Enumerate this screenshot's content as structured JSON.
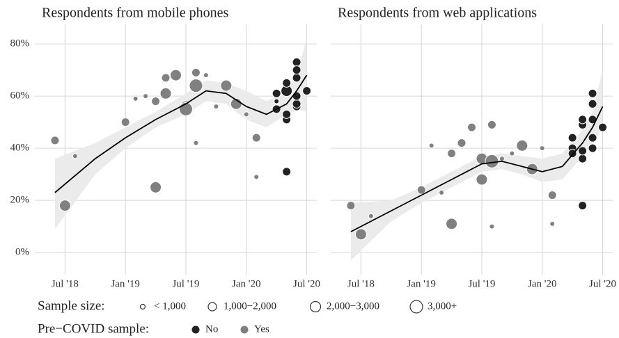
{
  "chart_data": [
    {
      "type": "scatter",
      "title": "Respondents from mobile phones",
      "xlim": [
        "2018-04",
        "2020-08"
      ],
      "xticks": [
        {
          "value": "2018-07",
          "label": "Jul '18"
        },
        {
          "value": "2019-01",
          "label": "Jan '19"
        },
        {
          "value": "2019-07",
          "label": "Jul '19"
        },
        {
          "value": "2020-01",
          "label": "Jan '20"
        },
        {
          "value": "2020-07",
          "label": "Jul '20"
        }
      ],
      "ylim": [
        -8.5,
        87.5
      ],
      "yticks": [
        {
          "value": 0,
          "label": "0%"
        },
        {
          "value": 20,
          "label": "20%"
        },
        {
          "value": 40,
          "label": "40%"
        },
        {
          "value": 60,
          "label": "60%"
        },
        {
          "value": 80,
          "label": "80%"
        }
      ],
      "grid": true,
      "series": [
        {
          "name": "No",
          "color": "#222222",
          "x": [
            "2020-04",
            "2020-04",
            "2020-04",
            "2020-05",
            "2020-05",
            "2020-05",
            "2020-05",
            "2020-05",
            "2020-06",
            "2020-06",
            "2020-06",
            "2020-06",
            "2020-06",
            "2020-06",
            "2020-07"
          ],
          "values": [
            61,
            58,
            55,
            31,
            51,
            62,
            53,
            65,
            73,
            67,
            56,
            57,
            60,
            70,
            62
          ],
          "sizes": [
            "1,000−2,000",
            "< 1,000",
            "1,000−2,000",
            "1,000−2,000",
            "1,000−2,000",
            "2,000−3,000",
            "1,000−2,000",
            "1,000−2,000",
            "1,000−2,000",
            "1,000−2,000",
            "1,000−2,000",
            "1,000−2,000",
            "1,000−2,000",
            "1,000−2,000",
            "1,000−2,000"
          ]
        },
        {
          "name": "Yes",
          "color": "#808080",
          "x": [
            "2018-06",
            "2018-07",
            "2018-08",
            "2019-01",
            "2019-02",
            "2019-03",
            "2019-04",
            "2019-04",
            "2019-05",
            "2019-05",
            "2019-06",
            "2019-07",
            "2019-07",
            "2019-08",
            "2019-08",
            "2019-08",
            "2019-09",
            "2019-10",
            "2019-11",
            "2019-12",
            "2020-01",
            "2020-02",
            "2020-02"
          ],
          "values": [
            43,
            18,
            37,
            50,
            59,
            60,
            58,
            25,
            67,
            61,
            68,
            56,
            55,
            69,
            64,
            42,
            68,
            56,
            64,
            57,
            53,
            29,
            44
          ],
          "sizes": [
            "1,000−2,000",
            "2,000−3,000",
            "< 1,000",
            "1,000−2,000",
            "< 1,000",
            "< 1,000",
            "1,000−2,000",
            "2,000−3,000",
            "1,000−2,000",
            "2,000−3,000",
            "2,000−3,000",
            "2,000−3,000",
            "3,000+",
            "1,000−2,000",
            "3,000+",
            "< 1,000",
            "< 1,000",
            "< 1,000",
            "2,000−3,000",
            "2,000−3,000",
            "< 1,000",
            "< 1,000",
            "1,000−2,000"
          ]
        }
      ],
      "trend": {
        "color": "#000000",
        "band_color": "#ebebeb",
        "x": [
          "2018-06",
          "2018-10",
          "2019-01",
          "2019-04",
          "2019-07",
          "2019-09",
          "2019-11",
          "2020-01",
          "2020-03",
          "2020-05",
          "2020-06",
          "2020-07"
        ],
        "values": [
          23,
          36,
          44,
          51,
          57,
          62,
          61,
          56,
          53,
          57,
          62,
          68
        ],
        "lower": [
          9,
          30,
          40,
          48,
          53,
          58,
          57,
          51,
          48,
          53,
          55,
          54
        ],
        "upper": [
          36,
          42,
          48,
          54,
          61,
          66,
          65,
          62,
          58,
          62,
          68,
          82
        ]
      }
    },
    {
      "type": "scatter",
      "title": "Respondents from web applications",
      "xlim": [
        "2018-04",
        "2020-08"
      ],
      "xticks": [
        {
          "value": "2018-07",
          "label": "Jul '18"
        },
        {
          "value": "2019-01",
          "label": "Jan '19"
        },
        {
          "value": "2019-07",
          "label": "Jul '19"
        },
        {
          "value": "2020-01",
          "label": "Jan '20"
        },
        {
          "value": "2020-07",
          "label": "Jul '20"
        }
      ],
      "ylim": [
        -8.5,
        87.5
      ],
      "yticks": [
        0,
        20,
        40,
        60,
        80
      ],
      "grid": true,
      "series": [
        {
          "name": "No",
          "color": "#222222",
          "x": [
            "2020-04",
            "2020-04",
            "2020-04",
            "2020-05",
            "2020-05",
            "2020-05",
            "2020-05",
            "2020-05",
            "2020-06",
            "2020-06",
            "2020-06",
            "2020-06",
            "2020-06",
            "2020-07"
          ],
          "values": [
            44,
            40,
            38,
            18,
            36,
            49,
            39,
            51,
            61,
            51,
            40,
            44,
            57,
            48
          ],
          "sizes": [
            "1,000−2,000",
            "1,000−2,000",
            "1,000−2,000",
            "1,000−2,000",
            "1,000−2,000",
            "1,000−2,000",
            "1,000−2,000",
            "1,000−2,000",
            "1,000−2,000",
            "1,000−2,000",
            "1,000−2,000",
            "1,000−2,000",
            "1,000−2,000",
            "1,000−2,000"
          ]
        },
        {
          "name": "Yes",
          "color": "#808080",
          "x": [
            "2018-06",
            "2018-07",
            "2018-08",
            "2019-01",
            "2019-02",
            "2019-03",
            "2019-04",
            "2019-04",
            "2019-05",
            "2019-06",
            "2019-07",
            "2019-07",
            "2019-08",
            "2019-08",
            "2019-08",
            "2019-09",
            "2019-10",
            "2019-11",
            "2019-12",
            "2020-01",
            "2020-02",
            "2020-02"
          ],
          "values": [
            18,
            7,
            14,
            24,
            41,
            23,
            38,
            11,
            42,
            48,
            36,
            28,
            49,
            10,
            35,
            36,
            38,
            41,
            32,
            40,
            22,
            11
          ],
          "sizes": [
            "1,000−2,000",
            "2,000−3,000",
            "< 1,000",
            "1,000−2,000",
            "< 1,000",
            "< 1,000",
            "1,000−2,000",
            "2,000−3,000",
            "1,000−2,000",
            "1,000−2,000",
            "2,000−3,000",
            "2,000−3,000",
            "1,000−2,000",
            "< 1,000",
            "3,000+",
            "< 1,000",
            "< 1,000",
            "2,000−3,000",
            "2,000−3,000",
            "< 1,000",
            "1,000−2,000",
            "< 1,000"
          ]
        }
      ],
      "trend": {
        "color": "#000000",
        "band_color": "#ebebeb",
        "x": [
          "2018-06",
          "2018-10",
          "2019-01",
          "2019-04",
          "2019-07",
          "2019-09",
          "2019-11",
          "2020-01",
          "2020-03",
          "2020-05",
          "2020-06",
          "2020-07"
        ],
        "values": [
          8,
          16,
          22,
          28,
          34,
          35,
          33,
          31,
          33,
          42,
          48,
          56
        ],
        "lower": [
          -3,
          12,
          19,
          25,
          31,
          32,
          30,
          27,
          28,
          37,
          42,
          48
        ],
        "upper": [
          19,
          20,
          25,
          31,
          37,
          38,
          37,
          36,
          38,
          47,
          54,
          70
        ]
      }
    }
  ],
  "legend": {
    "size_title": "Sample size:",
    "size_labels": [
      "< 1,000",
      "1,000−2,000",
      "2,000−3,000",
      "3,000+"
    ],
    "color_title": "Pre−COVID sample:"
  }
}
